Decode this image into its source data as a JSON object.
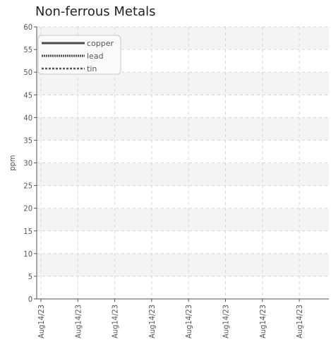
{
  "chart_data": {
    "type": "line",
    "title": "Non-ferrous Metals",
    "ylabel": "ppm",
    "xlabel": "",
    "ylim": [
      0,
      60
    ],
    "y_ticks": [
      0,
      5,
      10,
      15,
      20,
      25,
      30,
      35,
      40,
      45,
      50,
      55,
      60
    ],
    "x_tick_labels": [
      "Aug14/23",
      "Aug14/23",
      "Aug14/23",
      "Aug14/23",
      "Aug14/23",
      "Aug14/23",
      "Aug14/23",
      "Aug14/23"
    ],
    "grid": true,
    "legend_position": "top-left",
    "series": [
      {
        "name": "copper",
        "values": [],
        "style": "solid",
        "color": "#4a4a4a"
      },
      {
        "name": "lead",
        "values": [],
        "style": "dotted",
        "color": "#4a4a4a"
      },
      {
        "name": "tin",
        "values": [],
        "style": "dashed",
        "color": "#555555"
      }
    ]
  }
}
